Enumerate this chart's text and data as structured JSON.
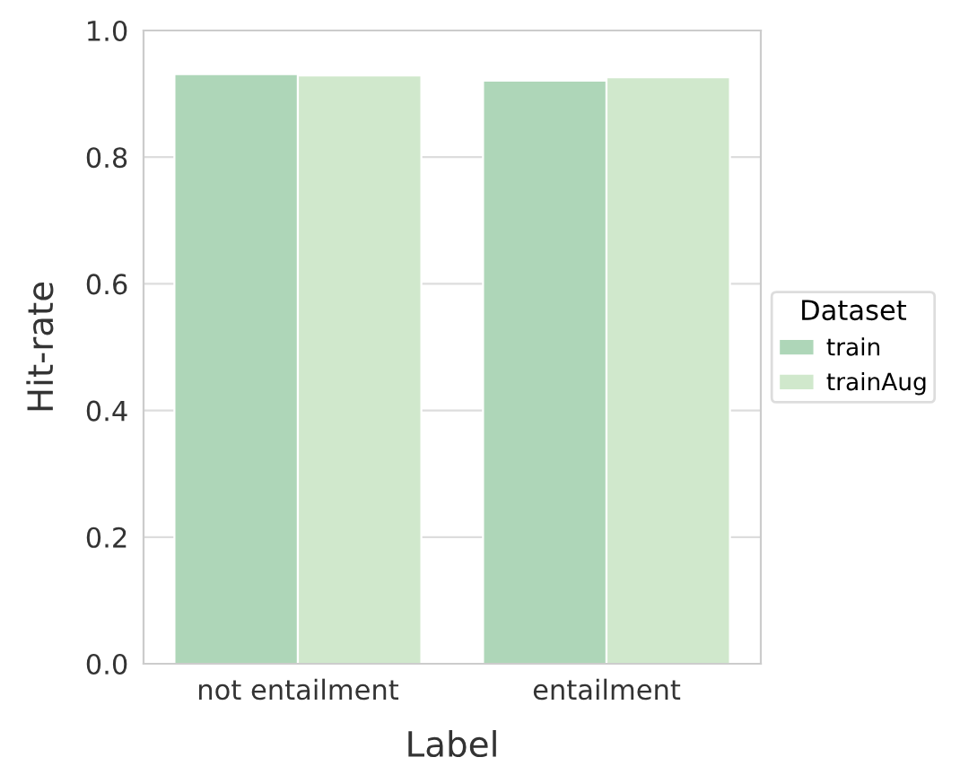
{
  "chart_data": {
    "type": "bar",
    "xlabel": "Label",
    "ylabel": "Hit-rate",
    "legend_title": "Dataset",
    "categories": [
      "not entailment",
      "entailment"
    ],
    "series": [
      {
        "name": "train",
        "color": "#aed6b8",
        "values": [
          0.931,
          0.921
        ]
      },
      {
        "name": "trainAug",
        "color": "#d0e8cc",
        "values": [
          0.929,
          0.926
        ]
      }
    ],
    "ylim": [
      0,
      1.0
    ],
    "yticks": [
      {
        "value": 0,
        "label": "0.0"
      },
      {
        "value": 0.2,
        "label": "0.2"
      },
      {
        "value": 0.4,
        "label": "0.4"
      },
      {
        "value": 0.6,
        "label": "0.6"
      },
      {
        "value": 0.8,
        "label": "0.8"
      },
      {
        "value": 1.0,
        "label": "1.0"
      }
    ],
    "grid": "y",
    "legend": "right"
  }
}
